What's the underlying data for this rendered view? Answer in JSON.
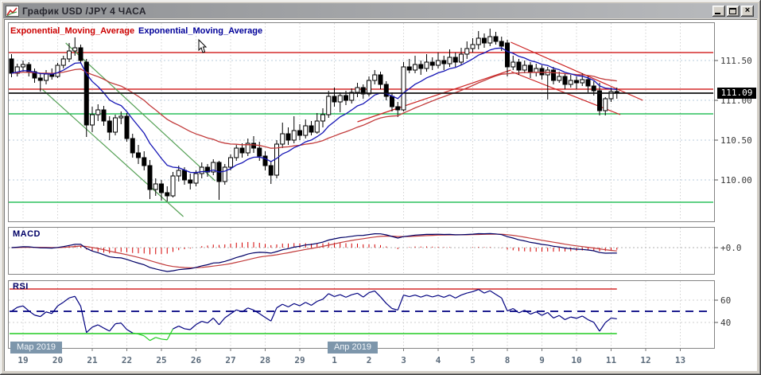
{
  "window": {
    "title": "График USD /JPY  4 ЧАСА",
    "controls": {
      "minimize": "_",
      "maximize": "□",
      "close": "×"
    }
  },
  "indicators": {
    "ema_red_label": "Exponential_Moving_Average",
    "ema_blue_label": "Exponential_Moving_Average",
    "macd_label": "MACD",
    "rsi_label": "RSI"
  },
  "axis": {
    "current_price": "111.09",
    "price_ticks": [
      {
        "label": "111.50",
        "price": 111.5
      },
      {
        "label": "111.00",
        "price": 111.0
      },
      {
        "label": "110.50",
        "price": 110.5
      },
      {
        "label": "110.00",
        "price": 110.0
      }
    ],
    "macd_zero_label": "+0.0",
    "rsi_ticks": [
      {
        "label": "60",
        "value": 60
      },
      {
        "label": "40",
        "value": 40
      }
    ],
    "dates": [
      "19",
      "20",
      "21",
      "22",
      "25",
      "26",
      "27",
      "28",
      "29",
      "1",
      "2",
      "3",
      "4",
      "5",
      "8",
      "9",
      "10",
      "11",
      "12",
      "13"
    ],
    "months": [
      {
        "label": "Мар 2019",
        "day_index": 0
      },
      {
        "label": "Апр 2019",
        "day_index": 9
      }
    ]
  },
  "colors": {
    "ema_fast": "#1515b5",
    "ema_slow": "#c23b3b",
    "level_red": "#cc0000",
    "level_green": "#00b43c",
    "current_price_line": "#111111",
    "trend_green": "#55a055",
    "trend_red": "#cc2222",
    "macd_main": "#000066",
    "macd_signal": "#c23b3b",
    "macd_hist": "#d40000",
    "rsi_line": "#000080",
    "rsi_over": "#d54fd5",
    "rsi_under": "#22cc22",
    "grid": "#d2d2d2",
    "grid_h": "#b9cede",
    "panel_border": "#848484",
    "axis_text": "#3a3a3a",
    "date_text": "#5b6b7b"
  },
  "chart_data": {
    "type": "candlestick+indicators",
    "symbol": "USD/JPY",
    "timeframe": "4H",
    "title": "График USD /JPY 4 ЧАСА",
    "y_axis_range": [
      109.48,
      111.98
    ],
    "candles_per_day": 6,
    "first_label_candle_index": 2,
    "candles": [
      [
        111.52,
        111.58,
        111.29,
        111.34
      ],
      [
        111.34,
        111.46,
        111.3,
        111.42
      ],
      [
        111.42,
        111.5,
        111.36,
        111.45
      ],
      [
        111.45,
        111.48,
        111.3,
        111.36
      ],
      [
        111.36,
        111.4,
        111.22,
        111.28
      ],
      [
        111.28,
        111.34,
        111.11,
        111.25
      ],
      [
        111.25,
        111.38,
        111.2,
        111.33
      ],
      [
        111.33,
        111.4,
        111.26,
        111.3
      ],
      [
        111.3,
        111.47,
        111.28,
        111.44
      ],
      [
        111.44,
        111.56,
        111.4,
        111.52
      ],
      [
        111.52,
        111.72,
        111.48,
        111.62
      ],
      [
        111.62,
        111.79,
        111.56,
        111.66
      ],
      [
        111.66,
        111.7,
        111.46,
        111.5
      ],
      [
        111.48,
        111.52,
        110.54,
        110.69
      ],
      [
        110.69,
        110.92,
        110.6,
        110.82
      ],
      [
        110.82,
        110.95,
        110.74,
        110.88
      ],
      [
        110.88,
        110.93,
        110.68,
        110.74
      ],
      [
        110.74,
        110.8,
        110.5,
        110.6
      ],
      [
        110.6,
        110.82,
        110.56,
        110.78
      ],
      [
        110.78,
        110.86,
        110.7,
        110.8
      ],
      [
        110.8,
        110.84,
        110.48,
        110.52
      ],
      [
        110.52,
        110.58,
        110.28,
        110.34
      ],
      [
        110.34,
        110.44,
        110.2,
        110.28
      ],
      [
        110.28,
        110.36,
        110.12,
        110.18
      ],
      [
        110.18,
        110.25,
        109.76,
        109.88
      ],
      [
        109.88,
        110.02,
        109.8,
        109.95
      ],
      [
        109.95,
        110.0,
        109.74,
        109.84
      ],
      [
        109.84,
        109.92,
        109.73,
        109.8
      ],
      [
        109.8,
        110.1,
        109.78,
        110.05
      ],
      [
        110.05,
        110.18,
        109.98,
        110.12
      ],
      [
        110.12,
        110.16,
        109.94,
        110.0
      ],
      [
        110.0,
        110.08,
        109.88,
        109.96
      ],
      [
        109.96,
        110.12,
        109.92,
        110.08
      ],
      [
        110.08,
        110.22,
        110.02,
        110.16
      ],
      [
        110.16,
        110.2,
        110.04,
        110.1
      ],
      [
        110.1,
        110.26,
        110.06,
        110.22
      ],
      [
        110.22,
        110.24,
        109.75,
        109.98
      ],
      [
        109.98,
        110.2,
        109.94,
        110.16
      ],
      [
        110.16,
        110.32,
        110.12,
        110.28
      ],
      [
        110.28,
        110.44,
        110.24,
        110.4
      ],
      [
        110.4,
        110.46,
        110.28,
        110.34
      ],
      [
        110.34,
        110.52,
        110.3,
        110.46
      ],
      [
        110.46,
        110.55,
        110.34,
        110.4
      ],
      [
        110.4,
        110.48,
        110.24,
        110.3
      ],
      [
        110.3,
        110.36,
        110.12,
        110.18
      ],
      [
        110.18,
        110.24,
        109.95,
        110.06
      ],
      [
        110.06,
        110.5,
        110.02,
        110.45
      ],
      [
        110.45,
        110.72,
        110.4,
        110.58
      ],
      [
        110.58,
        110.66,
        110.44,
        110.5
      ],
      [
        110.5,
        110.8,
        110.46,
        110.62
      ],
      [
        110.62,
        110.7,
        110.5,
        110.56
      ],
      [
        110.56,
        110.76,
        110.52,
        110.68
      ],
      [
        110.68,
        110.74,
        110.56,
        110.6
      ],
      [
        110.6,
        110.84,
        110.58,
        110.74
      ],
      [
        110.74,
        110.9,
        110.66,
        110.82
      ],
      [
        110.82,
        111.12,
        110.78,
        111.05
      ],
      [
        111.05,
        111.16,
        110.92,
        110.98
      ],
      [
        110.98,
        111.1,
        110.85,
        111.06
      ],
      [
        111.06,
        111.12,
        110.94,
        111.0
      ],
      [
        111.0,
        111.15,
        110.96,
        111.1
      ],
      [
        111.1,
        111.22,
        111.04,
        111.16
      ],
      [
        111.16,
        111.2,
        111.02,
        111.08
      ],
      [
        111.08,
        111.3,
        111.05,
        111.25
      ],
      [
        111.25,
        111.38,
        111.2,
        111.32
      ],
      [
        111.32,
        111.36,
        111.14,
        111.2
      ],
      [
        111.2,
        111.24,
        111.0,
        111.05
      ],
      [
        111.05,
        111.1,
        110.86,
        110.92
      ],
      [
        110.92,
        110.98,
        110.79,
        110.88
      ],
      [
        110.88,
        111.48,
        110.86,
        111.42
      ],
      [
        111.42,
        111.52,
        111.34,
        111.38
      ],
      [
        111.38,
        111.56,
        111.34,
        111.45
      ],
      [
        111.45,
        111.5,
        111.32,
        111.4
      ],
      [
        111.4,
        111.58,
        111.36,
        111.48
      ],
      [
        111.48,
        111.54,
        111.38,
        111.44
      ],
      [
        111.44,
        111.6,
        111.4,
        111.5
      ],
      [
        111.5,
        111.56,
        111.38,
        111.46
      ],
      [
        111.46,
        111.64,
        111.42,
        111.54
      ],
      [
        111.54,
        111.6,
        111.42,
        111.48
      ],
      [
        111.48,
        111.66,
        111.44,
        111.58
      ],
      [
        111.58,
        111.74,
        111.52,
        111.65
      ],
      [
        111.65,
        111.78,
        111.6,
        111.7
      ],
      [
        111.7,
        111.87,
        111.64,
        111.78
      ],
      [
        111.78,
        111.84,
        111.66,
        111.72
      ],
      [
        111.72,
        111.9,
        111.68,
        111.8
      ],
      [
        111.8,
        111.86,
        111.7,
        111.74
      ],
      [
        111.74,
        111.8,
        111.62,
        111.68
      ],
      [
        111.72,
        111.76,
        111.3,
        111.42
      ],
      [
        111.42,
        111.56,
        111.38,
        111.48
      ],
      [
        111.48,
        111.52,
        111.32,
        111.38
      ],
      [
        111.38,
        111.5,
        111.34,
        111.44
      ],
      [
        111.44,
        111.48,
        111.28,
        111.35
      ],
      [
        111.35,
        111.46,
        111.3,
        111.4
      ],
      [
        111.4,
        111.44,
        111.26,
        111.32
      ],
      [
        111.32,
        111.42,
        111.01,
        111.38
      ],
      [
        111.38,
        111.42,
        111.2,
        111.25
      ],
      [
        111.25,
        111.36,
        111.22,
        111.3
      ],
      [
        111.3,
        111.34,
        111.14,
        111.2
      ],
      [
        111.2,
        111.32,
        111.16,
        111.25
      ],
      [
        111.25,
        111.3,
        111.14,
        111.22
      ],
      [
        111.22,
        111.34,
        111.18,
        111.26
      ],
      [
        111.26,
        111.3,
        111.1,
        111.18
      ],
      [
        111.18,
        111.24,
        111.06,
        111.12
      ],
      [
        111.12,
        111.22,
        110.81,
        110.87
      ],
      [
        110.87,
        111.04,
        110.81,
        111.02
      ],
      [
        111.02,
        111.16,
        110.98,
        111.11
      ],
      [
        111.11,
        111.16,
        111.02,
        111.09
      ]
    ],
    "overlays": {
      "ema_fast_period": 10,
      "ema_slow_period": 34,
      "hlines": [
        {
          "price": 111.6,
          "color": "red"
        },
        {
          "price": 111.14,
          "color": "red"
        },
        {
          "price": 111.09,
          "color": "black"
        },
        {
          "price": 110.83,
          "color": "green"
        },
        {
          "price": 109.72,
          "color": "green"
        }
      ],
      "trendlines": [
        {
          "i1": 9.4,
          "p1": 111.72,
          "i2": 35.3,
          "p2": 109.99,
          "color": "green"
        },
        {
          "i1": 5.3,
          "p1": 111.14,
          "i2": 29.8,
          "p2": 109.54,
          "color": "green"
        },
        {
          "i1": 60.0,
          "p1": 110.73,
          "i2": 86.6,
          "p2": 111.38,
          "color": "red"
        },
        {
          "i1": 86.6,
          "p1": 111.73,
          "i2": 109.5,
          "p2": 111.0,
          "color": "red"
        },
        {
          "i1": 86.7,
          "p1": 111.36,
          "i2": 105.6,
          "p2": 110.82,
          "color": "red"
        }
      ]
    },
    "macd": {
      "fast": 12,
      "slow": 26,
      "signal": 9
    },
    "rsi": {
      "period": 14,
      "levels": {
        "upper": 70,
        "middle": 50,
        "lower": 30
      }
    }
  }
}
